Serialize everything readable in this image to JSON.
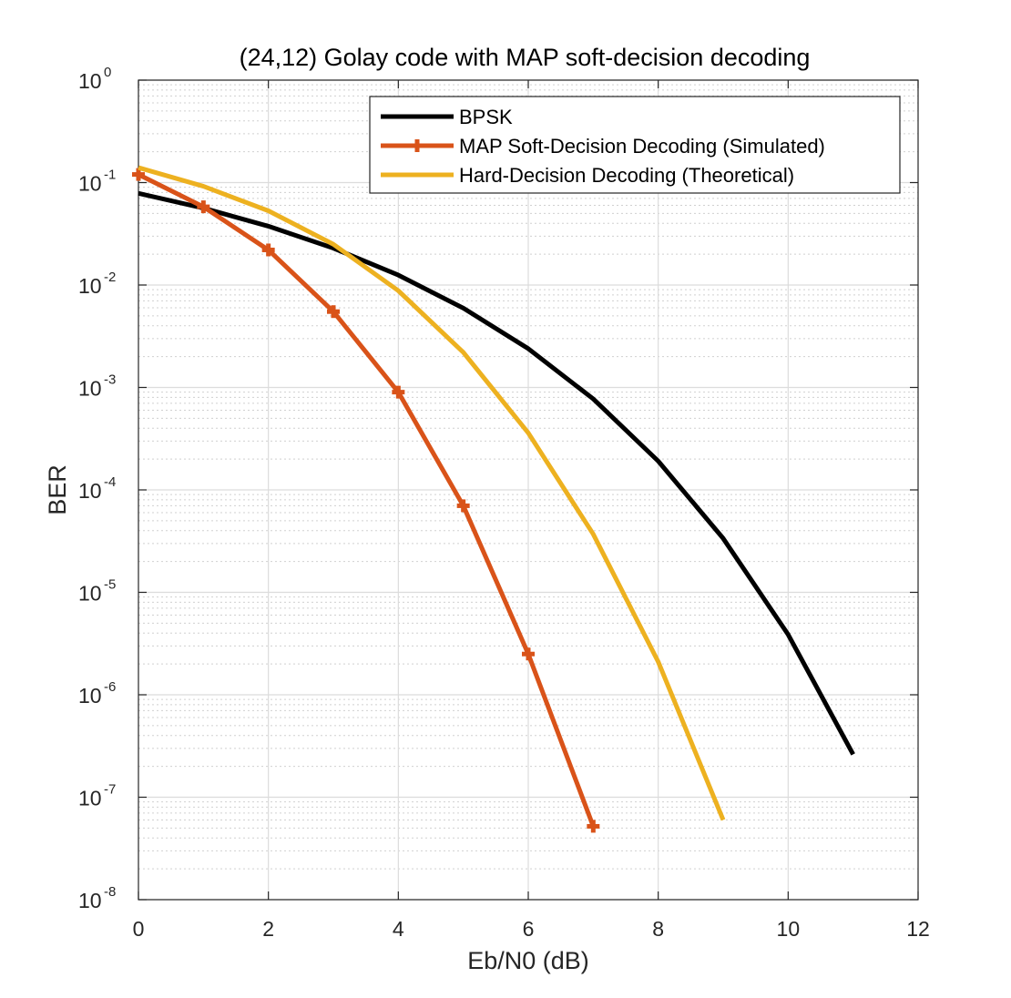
{
  "chart_data": {
    "type": "line",
    "title": "(24,12) Golay code with MAP soft-decision decoding",
    "xlabel": "Eb/N0 (dB)",
    "ylabel": "BER",
    "xlim": [
      0,
      12
    ],
    "ylim": [
      1e-08,
      1
    ],
    "yscale": "log",
    "grid": true,
    "minor_grid": true,
    "legend_position": "top-right",
    "x_ticks": [
      "0",
      "2",
      "4",
      "6",
      "8",
      "10",
      "12"
    ],
    "y_ticks": [
      {
        "base": "10",
        "exp": "0"
      },
      {
        "base": "10",
        "exp": "-1"
      },
      {
        "base": "10",
        "exp": "-2"
      },
      {
        "base": "10",
        "exp": "-3"
      },
      {
        "base": "10",
        "exp": "-4"
      },
      {
        "base": "10",
        "exp": "-5"
      },
      {
        "base": "10",
        "exp": "-6"
      },
      {
        "base": "10",
        "exp": "-7"
      },
      {
        "base": "10",
        "exp": "-8"
      }
    ],
    "series": [
      {
        "name": "BPSK",
        "color": "#000000",
        "marker": "none",
        "x": [
          0,
          1,
          2,
          3,
          4,
          5,
          6,
          7,
          8,
          9,
          10,
          11
        ],
        "y": [
          0.0786,
          0.0563,
          0.0375,
          0.0229,
          0.0125,
          0.00595,
          0.00239,
          0.000773,
          0.000191,
          3.36e-05,
          3.87e-06,
          2.62e-07
        ]
      },
      {
        "name": "MAP Soft-Decision Decoding (Simulated)",
        "color": "#d95319",
        "marker": "plus",
        "x": [
          0,
          1,
          2,
          3,
          4,
          5,
          6,
          7
        ],
        "y": [
          0.12,
          0.058,
          0.022,
          0.0055,
          0.0009,
          7e-05,
          2.5e-06,
          5.2e-08
        ]
      },
      {
        "name": "Hard-Decision Decoding (Theoretical)",
        "color": "#edb120",
        "marker": "none",
        "x": [
          0,
          1,
          2,
          3,
          4,
          5,
          6,
          7,
          8,
          9
        ],
        "y": [
          0.14,
          0.092,
          0.053,
          0.025,
          0.0088,
          0.0022,
          0.00036,
          3.7e-05,
          2.1e-06,
          6e-08
        ]
      }
    ]
  }
}
